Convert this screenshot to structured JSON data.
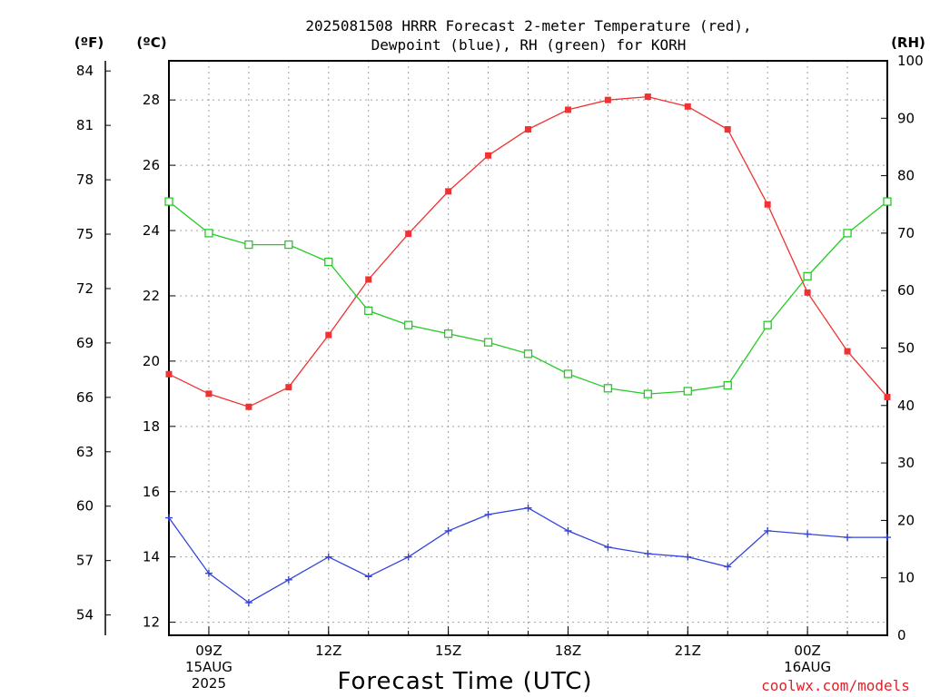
{
  "chart_data": {
    "type": "line",
    "title_line1": "2025081508 HRRR Forecast 2-meter Temperature (red),",
    "title_line2": "Dewpoint (blue), RH (green) for KORH",
    "xlabel": "Forecast Time (UTC)",
    "credit": "coolwx.com/models",
    "units": {
      "left_f": "(ºF)",
      "left_c": "(ºC)",
      "right_rh": "(RH)"
    },
    "x_hours": [
      8,
      9,
      10,
      11,
      12,
      13,
      14,
      15,
      16,
      17,
      18,
      19,
      20,
      21,
      22,
      23,
      24,
      25,
      26
    ],
    "x_ticks": [
      {
        "hour": 9,
        "lines": [
          "09Z",
          "15AUG",
          "2025"
        ]
      },
      {
        "hour": 12,
        "lines": [
          "12Z"
        ]
      },
      {
        "hour": 15,
        "lines": [
          "15Z"
        ]
      },
      {
        "hour": 18,
        "lines": [
          "18Z"
        ]
      },
      {
        "hour": 21,
        "lines": [
          "21Z"
        ]
      },
      {
        "hour": 24,
        "lines": [
          "00Z",
          "16AUG"
        ]
      }
    ],
    "x_range": [
      8,
      26
    ],
    "y_celsius_range": [
      11.6,
      29.2
    ],
    "y_celsius_ticks": [
      "12",
      "14",
      "16",
      "18",
      "20",
      "22",
      "24",
      "26",
      "28"
    ],
    "y_fahrenheit_ticks": [
      "54",
      "57",
      "60",
      "63",
      "66",
      "69",
      "72",
      "75",
      "78",
      "81",
      "84"
    ],
    "y_rh_range": [
      0,
      100
    ],
    "y_rh_ticks": [
      "0",
      "10",
      "20",
      "30",
      "40",
      "50",
      "60",
      "70",
      "80",
      "90",
      "100"
    ],
    "grid": true,
    "colors": {
      "temperature": "#ee3333",
      "dewpoint": "#3344dd",
      "rh": "#22cc22",
      "grid": "#a0a0a0"
    },
    "series": [
      {
        "id": "temperature",
        "axis": "celsius",
        "values": [
          19.6,
          19.0,
          18.6,
          19.2,
          20.8,
          22.5,
          23.9,
          25.2,
          26.3,
          27.1,
          27.7,
          28.0,
          28.1,
          27.8,
          27.1,
          24.8,
          22.1,
          20.3,
          18.9
        ]
      },
      {
        "id": "dewpoint",
        "axis": "celsius",
        "values": [
          15.2,
          13.5,
          12.6,
          13.3,
          14.0,
          13.4,
          14.0,
          14.8,
          15.3,
          15.5,
          14.8,
          14.3,
          14.1,
          14.0,
          13.7,
          14.8,
          14.7,
          14.6,
          14.6
        ]
      },
      {
        "id": "rh",
        "axis": "rh",
        "values": [
          75.5,
          70.0,
          68.0,
          68.0,
          65.0,
          56.5,
          54.0,
          52.5,
          51.0,
          49.0,
          45.5,
          43.0,
          42.0,
          42.5,
          43.5,
          54.0,
          62.5,
          70.0,
          75.5
        ]
      }
    ]
  }
}
